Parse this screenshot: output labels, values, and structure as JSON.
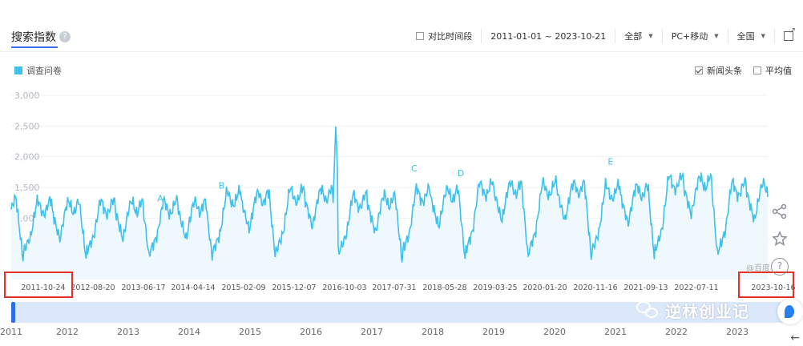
{
  "header": {
    "title": "搜索指数",
    "help": "?",
    "compare_label": "对比时间段",
    "date_range": "2011-01-01 ~ 2023-10-21",
    "scope": "全部",
    "device": "PC+移动",
    "region": "全国",
    "caret": "▼"
  },
  "legend": {
    "series_label": "调查问卷",
    "color": "#3ec1ea"
  },
  "options": {
    "news_label": "新闻头条",
    "news_checked": true,
    "average_label": "平均值",
    "average_checked": false
  },
  "chart_data": {
    "type": "area",
    "ylim": [
      0,
      3000
    ],
    "yticks": [
      "3,000",
      "2,500",
      "2,000",
      "1,500",
      "1,000",
      "500"
    ],
    "ytick_values": [
      3000,
      2500,
      2000,
      1500,
      1000,
      500
    ],
    "xticks": [
      "2011-10-24",
      "2012-08-20",
      "2013-06-17",
      "2014-04-14",
      "2015-02-09",
      "2015-12-07",
      "2016-10-03",
      "2017-07-31",
      "2018-05-28",
      "2019-03-25",
      "2020-01-20",
      "2020-11-16",
      "2021-09-13",
      "2022-07-11",
      "2023-10-16"
    ],
    "x_start": 2011.81,
    "x_end": 2023.79,
    "annual_peaks": [
      1350,
      1300,
      1300,
      1300,
      1450,
      1500,
      1400,
      1500,
      1600,
      1600,
      1550,
      1700,
      1600
    ],
    "spike": {
      "x": 2016.95,
      "value": 2550
    },
    "annotations": [
      {
        "letter": "A",
        "x": 2014.17,
        "value": 1270
      },
      {
        "letter": "B",
        "x": 2015.14,
        "value": 1480
      },
      {
        "letter": "C",
        "x": 2018.19,
        "value": 1760
      },
      {
        "letter": "D",
        "x": 2018.93,
        "value": 1680
      },
      {
        "letter": "E",
        "x": 2021.3,
        "value": 1870
      }
    ],
    "color": "#3ec1ea",
    "fill": "#eef8fd"
  },
  "slider": {
    "years": [
      "2011",
      "2012",
      "2013",
      "2014",
      "2015",
      "2016",
      "2017",
      "2018",
      "2019",
      "2020",
      "2021",
      "2022",
      "2023"
    ]
  },
  "watermark": {
    "text": "逆林创业记",
    "small": "@百度"
  },
  "icons": [
    "share-icon",
    "star-icon",
    "help-circle-icon",
    "external-link-icon",
    "wechat-icon",
    "back-arrow-icon"
  ]
}
